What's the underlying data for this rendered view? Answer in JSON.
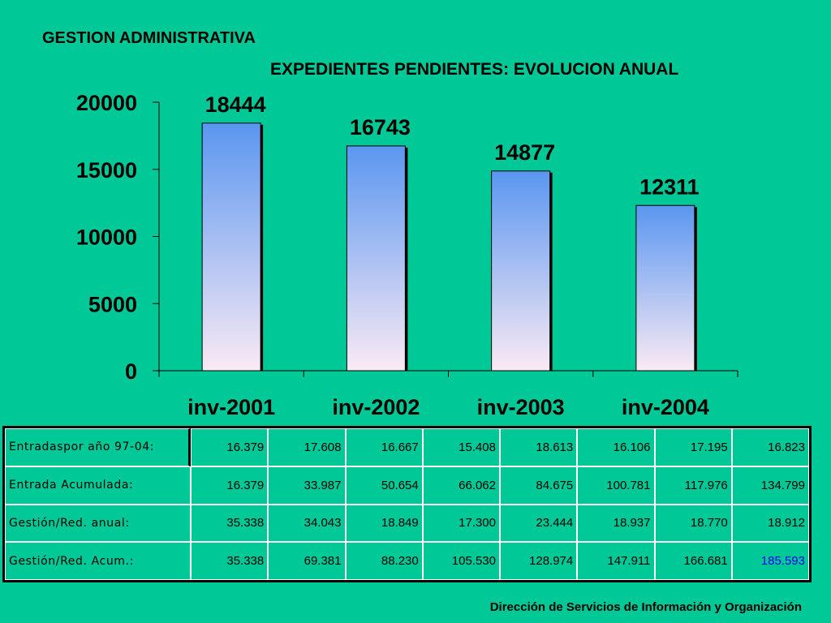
{
  "header": {
    "title": "GESTION ADMINISTRATIVA",
    "subtitle": "EXPEDIENTES PENDIENTES: EVOLUCION ANUAL"
  },
  "chart_data": {
    "type": "bar",
    "categories": [
      "inv-2001",
      "inv-2002",
      "inv-2003",
      "inv-2004"
    ],
    "values": [
      18444,
      16743,
      14877,
      12311
    ],
    "data_labels": [
      "18444",
      "16743",
      "14877",
      "12311"
    ],
    "ylim": [
      0,
      20000
    ],
    "yticks": [
      0,
      5000,
      10000,
      15000,
      20000
    ],
    "grid": false,
    "legend": "none",
    "bar_gradient": [
      "#5A96F0",
      "#FAEAF4"
    ]
  },
  "table": {
    "rows": [
      {
        "label": "Entradaspor año 97-04:",
        "values": [
          "16.379",
          "17.608",
          "16.667",
          "15.408",
          "18.613",
          "16.106",
          "17.195",
          "16.823"
        ]
      },
      {
        "label": "Entrada Acumulada:",
        "values": [
          "16.379",
          "33.987",
          "50.654",
          "66.062",
          "84.675",
          "100.781",
          "117.976",
          "134.799"
        ]
      },
      {
        "label": "Gestión/Red. anual:",
        "values": [
          "35.338",
          "34.043",
          "18.849",
          "17.300",
          "23.444",
          "18.937",
          "18.770",
          "18.912"
        ]
      },
      {
        "label": "Gestión/Red. Acum.:",
        "values": [
          "35.338",
          "69.381",
          "88.230",
          "105.530",
          "128.974",
          "147.911",
          "166.681",
          "185.593"
        ]
      }
    ],
    "highlight_color": "#0000EE"
  },
  "footer": {
    "text": "Dirección de Servicios de  Información y Organización"
  }
}
